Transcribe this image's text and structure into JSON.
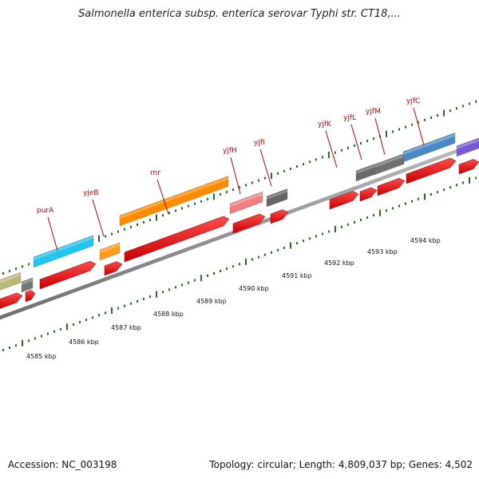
{
  "title": "Salmonella enterica subsp. enterica serovar Typhi str. CT18,...",
  "footer": {
    "accession": "Accession: NC_003198",
    "summary": "Topology: circular; Length: 4,809,037 bp; Genes: 4,502"
  },
  "colors": {
    "backbone": "#8a8a8a",
    "tick": "#1a7a1a",
    "label": "#cc0000",
    "cds": "#ee1111"
  },
  "scale_labels": [
    "4585 kbp",
    "4586 kbp",
    "4587 kbp",
    "4588 kbp",
    "4589 kbp",
    "4590 kbp",
    "4591 kbp",
    "4592 kbp",
    "4593 kbp",
    "4594 kbp"
  ],
  "gene_labels": [
    "purA",
    "yjeB",
    "rnr",
    "yjfH",
    "yjfI",
    "yjfK",
    "yjfL",
    "yjfM",
    "yjfC"
  ],
  "features": [
    {
      "name": "olive-feature",
      "color": "#b8b878"
    },
    {
      "name": "small-gray-feature",
      "color": "#777777"
    },
    {
      "name": "purA-feature",
      "color": "#22c4f0"
    },
    {
      "name": "yjeB-feature",
      "color": "#ff9a1a"
    },
    {
      "name": "rnr-feature",
      "color": "#ff8c00"
    },
    {
      "name": "yjfH-feature",
      "color": "#f08080"
    },
    {
      "name": "yjfI-feature",
      "color": "#666666"
    },
    {
      "name": "yjfL-feature",
      "color": "#6a6a6a"
    },
    {
      "name": "yjfM-feature",
      "color": "#707070"
    },
    {
      "name": "yjfC-feature",
      "color": "#4a8ac4"
    },
    {
      "name": "purple-feature",
      "color": "#7a5ad0"
    }
  ]
}
